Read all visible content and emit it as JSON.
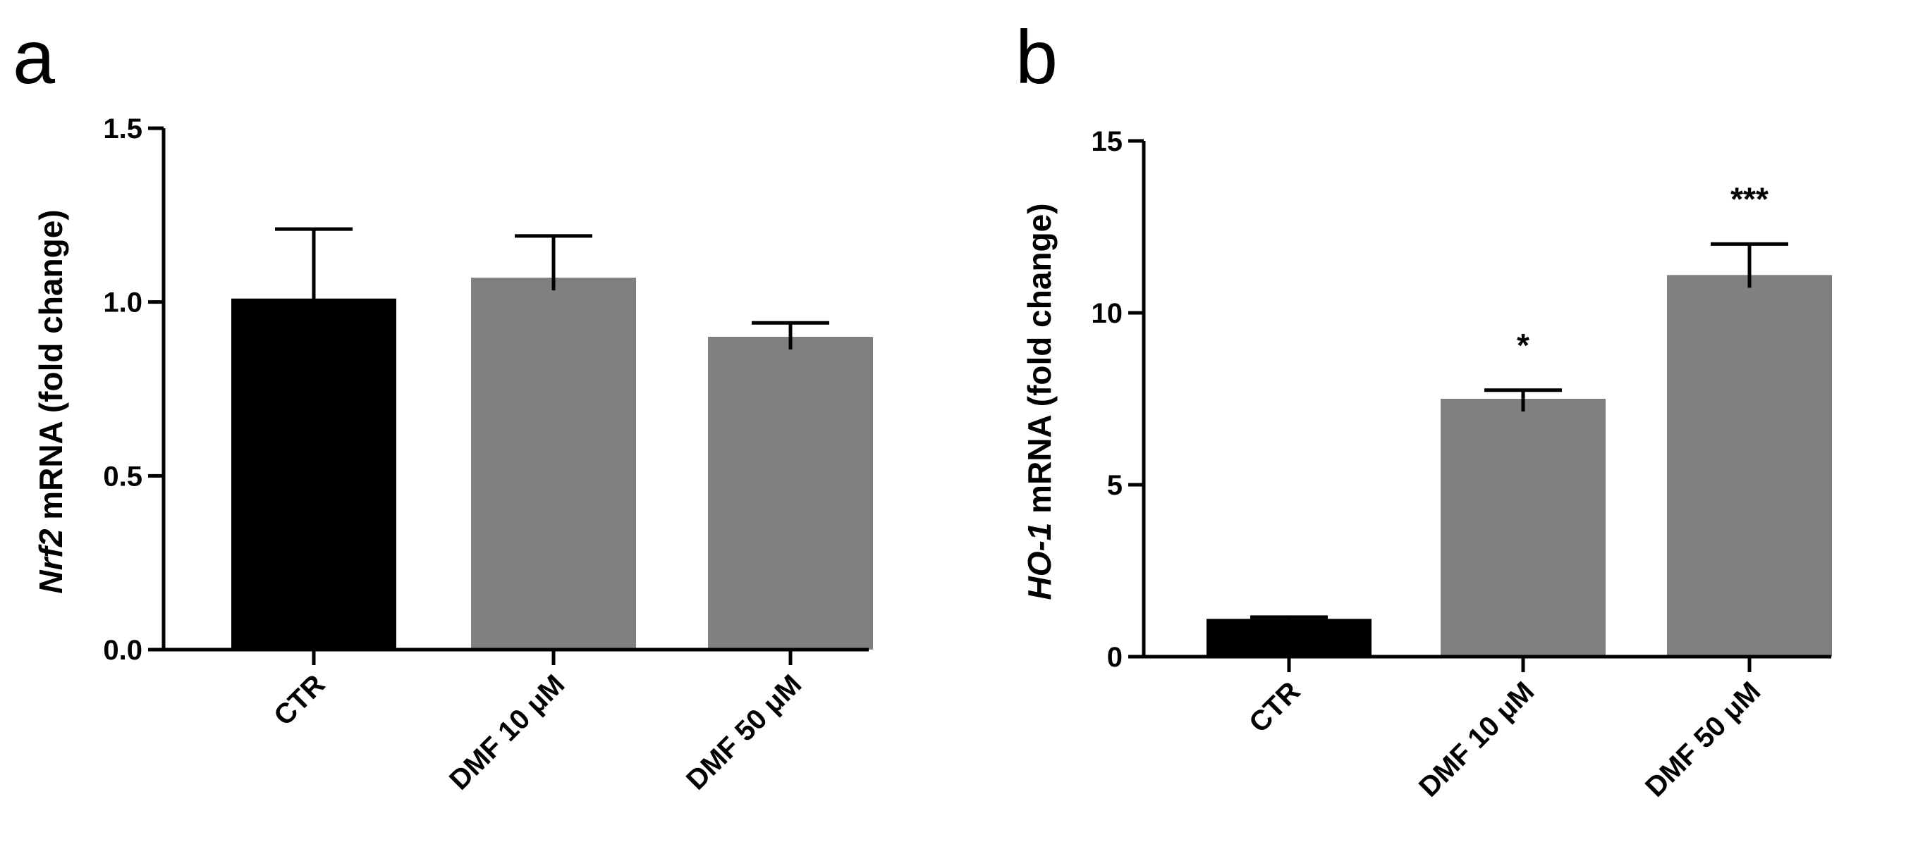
{
  "chart_data": [
    {
      "panel": "a",
      "type": "bar",
      "ylabel_gene": "Nrf2",
      "ylabel_rest": " mRNA (fold change)",
      "ylim": [
        0,
        1.5
      ],
      "yticks": [
        "0.0",
        "0.5",
        "1.0",
        "1.5"
      ],
      "ytick_values": [
        0,
        0.5,
        1.0,
        1.5
      ],
      "categories": [
        "CTR",
        "DMF 10 μM",
        "DMF 50 μM"
      ],
      "values": [
        1.01,
        1.07,
        0.9
      ],
      "errors": [
        0.2,
        0.12,
        0.04
      ],
      "colors": [
        "#000000",
        "#808080",
        "#808080"
      ],
      "significance": [
        "",
        "",
        ""
      ]
    },
    {
      "panel": "b",
      "type": "bar",
      "ylabel_gene": "HO-1",
      "ylabel_rest": " mRNA (fold change)",
      "ylim": [
        0,
        15
      ],
      "yticks": [
        "0",
        "5",
        "10",
        "15"
      ],
      "ytick_values": [
        0,
        5,
        10,
        15
      ],
      "categories": [
        "CTR",
        "DMF 10 μM",
        "DMF 50 μM"
      ],
      "values": [
        1.1,
        7.5,
        11.1
      ],
      "errors": [
        0.05,
        0.25,
        0.9
      ],
      "colors": [
        "#000000",
        "#808080",
        "#808080"
      ],
      "significance": [
        "",
        "*",
        "***"
      ]
    }
  ]
}
